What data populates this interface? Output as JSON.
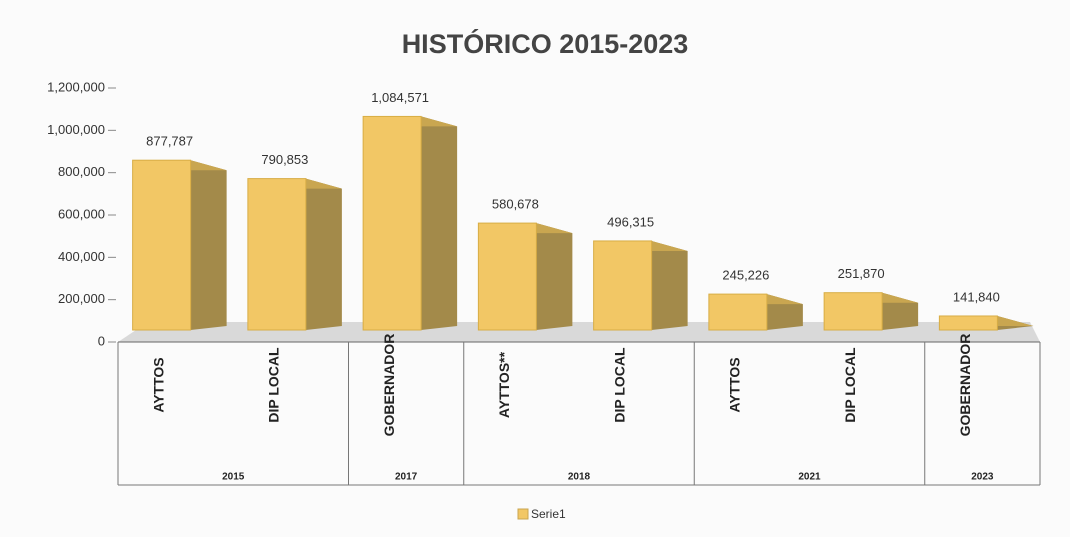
{
  "chart_data": {
    "type": "bar3d",
    "title": "HISTÓRICO 2015-2023",
    "groups": [
      {
        "name": "2015",
        "categories": [
          "AYTTOS",
          "DIP LOCAL"
        ]
      },
      {
        "name": "2017",
        "categories": [
          "GOBERNADOR"
        ]
      },
      {
        "name": "2018",
        "categories": [
          "AYTTOS**",
          "DIP LOCAL"
        ]
      },
      {
        "name": "2021",
        "categories": [
          "AYTTOS",
          "DIP LOCAL"
        ]
      },
      {
        "name": "2023",
        "categories": [
          "GOBERNADOR"
        ]
      }
    ],
    "series": [
      {
        "name": "Serie1",
        "color": "#f2c765",
        "values": [
          877787,
          790853,
          1084571,
          580678,
          496315,
          245226,
          251870,
          141840
        ],
        "value_labels": [
          "877,787",
          "790,853",
          "1,084,571",
          "580,678",
          "496,315",
          "245,226",
          "251,870",
          "141,840"
        ]
      }
    ],
    "ylim": [
      0,
      1200000
    ],
    "yticks": [
      0,
      {
        "value": 200000,
        "label": "200,000"
      },
      {
        "value": 400000,
        "label": "400,000"
      },
      {
        "value": 600000,
        "label": "600,000"
      },
      {
        "value": 800000,
        "label": "800,000"
      },
      {
        "value": 1000000,
        "label": "1,000,000"
      },
      {
        "value": 1200000,
        "label": "1,200,000"
      }
    ],
    "legend": "bottom"
  }
}
